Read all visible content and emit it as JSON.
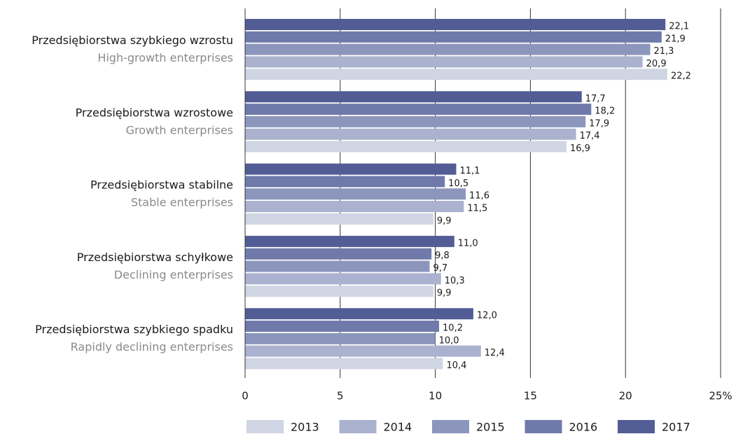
{
  "chart_data": {
    "type": "bar",
    "orientation": "horizontal",
    "categories": [
      "Przedsiębiorstwa szybkiego wzrostu",
      "Przedsiębiorstwa wzrostowe",
      "Przedsiębiorstwa stabilne",
      "Przedsiębiorstwa schyłkowe",
      "Przedsiębiorstwa szybkiego spadku"
    ],
    "category_subtitles": [
      "High-growth enterprises",
      "Growth enterprises",
      "Stable enterprises",
      "Declining enterprises",
      "Rapidly declining enterprises"
    ],
    "series": [
      {
        "name": "2013",
        "color": "#d0d5e3",
        "values": [
          22.2,
          16.9,
          9.9,
          9.9,
          10.4
        ],
        "value_labels": [
          "22,2",
          "16,9",
          "9,9",
          "9,9",
          "10,4"
        ]
      },
      {
        "name": "2014",
        "color": "#aab2cf",
        "values": [
          20.9,
          17.4,
          11.5,
          10.3,
          12.4
        ],
        "value_labels": [
          "20,9",
          "17,4",
          "11,5",
          "10,3",
          "12,4"
        ]
      },
      {
        "name": "2015",
        "color": "#8c96bd",
        "values": [
          21.3,
          17.9,
          11.6,
          9.7,
          10.0
        ],
        "value_labels": [
          "21,3",
          "17,9",
          "11,6",
          "9,7",
          "10,0"
        ]
      },
      {
        "name": "2016",
        "color": "#6f7aab",
        "values": [
          21.9,
          18.2,
          10.5,
          9.8,
          10.2
        ],
        "value_labels": [
          "21,9",
          "18,2",
          "10,5",
          "9,8",
          "10,2"
        ]
      },
      {
        "name": "2017",
        "color": "#525d96",
        "values": [
          22.1,
          17.7,
          11.1,
          11.0,
          12.0
        ],
        "value_labels": [
          "22,1",
          "17,7",
          "11,1",
          "11,0",
          "12,0"
        ]
      }
    ],
    "xlim": [
      0,
      25
    ],
    "xticks": [
      0,
      5,
      10,
      15,
      20,
      {
        "value": 25,
        "label": "25%"
      }
    ],
    "grid": true,
    "legend": "bottom"
  }
}
